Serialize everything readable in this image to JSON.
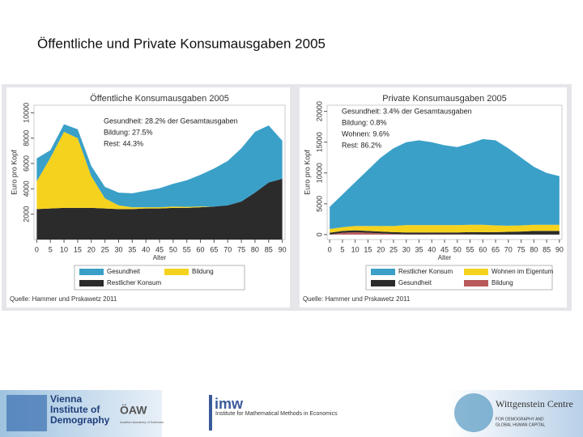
{
  "title": "Öffentliche und Private Konsumausgaben 2005",
  "chart_data": [
    {
      "type": "area",
      "stacked": true,
      "title": "Öffentliche Konsumausgaben 2005",
      "xlabel": "Alter",
      "ylabel": "Euro pro Kopf",
      "x": [
        0,
        5,
        10,
        15,
        20,
        25,
        30,
        35,
        40,
        45,
        50,
        55,
        60,
        65,
        70,
        75,
        80,
        85,
        90
      ],
      "xlim": [
        -1,
        91
      ],
      "xticks": [
        0,
        5,
        10,
        15,
        20,
        25,
        30,
        35,
        40,
        45,
        50,
        55,
        60,
        65,
        70,
        75,
        80,
        85,
        90
      ],
      "ylim": [
        0,
        10600
      ],
      "yticks": [
        2000,
        4000,
        6000,
        8000,
        10000
      ],
      "series": [
        {
          "name": "Restlicher Konsum",
          "color": "#2b2b2b",
          "values": [
            2400,
            2450,
            2500,
            2500,
            2500,
            2450,
            2400,
            2400,
            2450,
            2450,
            2500,
            2500,
            2550,
            2600,
            2700,
            3000,
            3700,
            4500,
            4800
          ]
        },
        {
          "name": "Bildung",
          "color": "#f5d21e",
          "values": [
            2200,
            4000,
            6000,
            5500,
            2500,
            800,
            300,
            150,
            100,
            100,
            100,
            80,
            60,
            0,
            0,
            0,
            0,
            0,
            0
          ]
        },
        {
          "name": "Gesundheit",
          "color": "#3aa0c8",
          "values": [
            1800,
            600,
            600,
            700,
            800,
            900,
            1000,
            1100,
            1300,
            1500,
            1800,
            2100,
            2500,
            3000,
            3500,
            4200,
            4800,
            4500,
            3000
          ]
        }
      ],
      "annotations": [
        "Gesundheit: 28.2% der Gesamtausgaben",
        "Bildung: 27.5%",
        "Rest: 44.3%"
      ],
      "source": "Quelle: Hammer und Prskawetz 2011"
    },
    {
      "type": "area",
      "stacked": true,
      "title": "Private Konsumausgaben 2005",
      "xlabel": "Alter",
      "ylabel": "Euro pro Kopf",
      "x": [
        0,
        5,
        10,
        15,
        20,
        25,
        30,
        35,
        40,
        45,
        50,
        55,
        60,
        65,
        70,
        75,
        80,
        85,
        90
      ],
      "xlim": [
        -1,
        91
      ],
      "xticks": [
        0,
        5,
        10,
        15,
        20,
        25,
        30,
        35,
        40,
        45,
        50,
        55,
        60,
        65,
        70,
        75,
        80,
        85,
        90
      ],
      "ylim": [
        -800,
        21000
      ],
      "yticks": [
        0,
        5000,
        10000,
        15000,
        20000
      ],
      "series": [
        {
          "name": "Bildung",
          "color": "#b85a5a",
          "values": [
            0,
            300,
            400,
            300,
            200,
            100,
            50,
            50,
            50,
            50,
            50,
            50,
            0,
            0,
            0,
            0,
            0,
            0,
            0
          ]
        },
        {
          "name": "Gesundheit",
          "color": "#2b2b2b",
          "values": [
            300,
            300,
            300,
            300,
            300,
            300,
            300,
            300,
            300,
            300,
            300,
            350,
            400,
            400,
            450,
            500,
            600,
            600,
            600
          ]
        },
        {
          "name": "Wohnen im Eigentum",
          "color": "#f5d21e",
          "values": [
            600,
            600,
            700,
            800,
            900,
            1000,
            1200,
            1200,
            1200,
            1200,
            1200,
            1200,
            1200,
            1100,
            1000,
            1000,
            1000,
            1000,
            1000
          ]
        },
        {
          "name": "Restlicher Konsum",
          "color": "#3aa0c8",
          "values": [
            3600,
            5300,
            7100,
            9100,
            11100,
            12600,
            13450,
            13750,
            13450,
            12950,
            12650,
            13200,
            13900,
            13800,
            12550,
            11000,
            9400,
            8400,
            7900
          ]
        }
      ],
      "annotations": [
        "Gesundheit: 3.4% der Gesamtausgaben",
        "Bildung: 0.8%",
        "Wohnen: 9.6%",
        "Rest: 86.2%"
      ],
      "source": "Quelle: Hammer und Prskawetz 2011"
    }
  ],
  "footer": {
    "vid": [
      "Vienna",
      "Institute of",
      "Demography"
    ],
    "oaw": "ÖAW",
    "oaw_sub": "Austrian Academy of Sciences",
    "imm": "Institute for Mathematical Methods in Economics",
    "wic": "Wittgenstein Centre",
    "wic_sub": [
      "FOR DEMOGRAPHY AND",
      "GLOBAL HUMAN CAPITAL"
    ]
  }
}
